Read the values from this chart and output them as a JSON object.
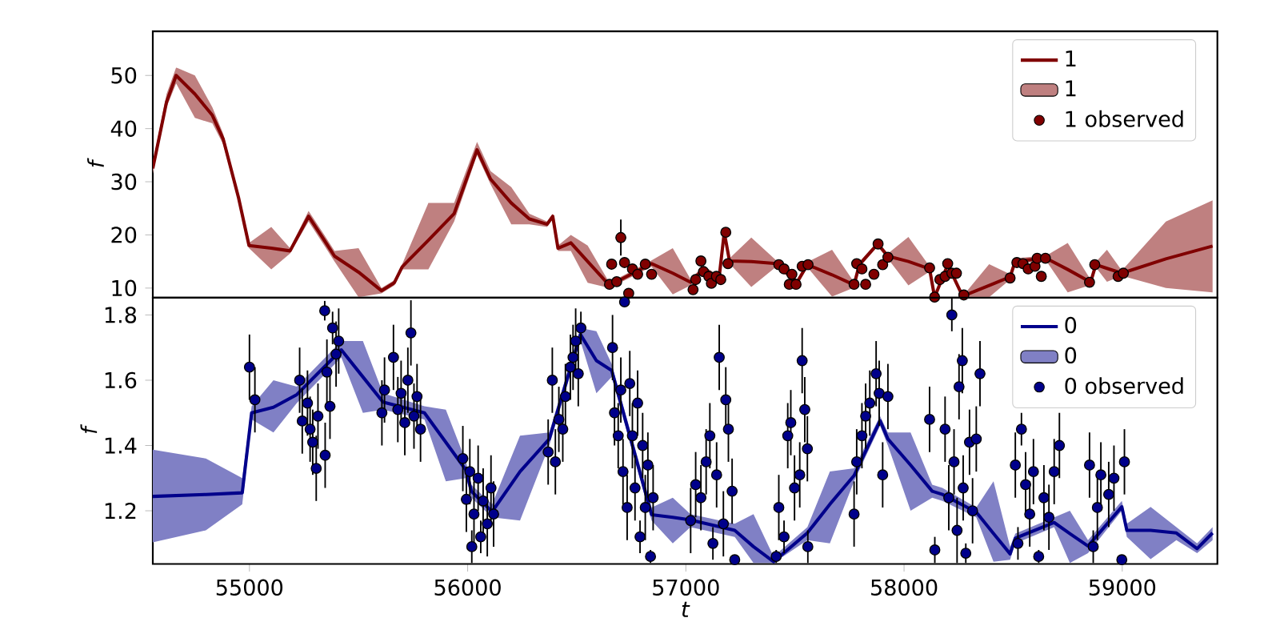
{
  "chart_data": [
    {
      "type": "line",
      "ylabel": "f",
      "xlim": [
        54557,
        59436
      ],
      "ylim": [
        8.2,
        58.3
      ],
      "yticks": [
        10,
        20,
        30,
        40,
        50
      ],
      "tick_labels": "y",
      "legend": "top right",
      "series": [
        {
          "name": "1",
          "type": "line",
          "color": "#800000",
          "x": [
            54557,
            54620,
            54664,
            54750,
            54830,
            54880,
            54950,
            54998,
            55100,
            55186,
            55271,
            55343,
            55390,
            55500,
            55605,
            55664,
            55700,
            55820,
            55938,
            56043,
            56105,
            56200,
            56283,
            56364,
            56390,
            56414,
            56473,
            56550,
            56650,
            56843,
            56940,
            57021,
            57081,
            57152,
            57176,
            57200,
            57300,
            57414,
            57510,
            57557,
            57670,
            57771,
            57795,
            57879,
            57926,
            58020,
            58117,
            58140,
            58200,
            58260,
            58283,
            58390,
            58486,
            58510,
            58652,
            58750,
            58855,
            58879,
            58930,
            58998,
            59200,
            59414
          ],
          "values": [
            32.5,
            45,
            50,
            46.5,
            42.5,
            38,
            27,
            18,
            17.5,
            17,
            23.5,
            19,
            16,
            13,
            9.5,
            11,
            14,
            19,
            24,
            36,
            30.5,
            26,
            23,
            22,
            23.5,
            17.5,
            18.5,
            15,
            10.5,
            14.6,
            12.8,
            11.1,
            13.6,
            11.8,
            20.5,
            15.1,
            15,
            14.6,
            11.1,
            14.4,
            12.5,
            10.6,
            14.4,
            18.3,
            16,
            15,
            13.6,
            8.3,
            14.4,
            9.2,
            8.7,
            10.5,
            12.1,
            15.1,
            15.6,
            13.5,
            11.1,
            14.4,
            13.7,
            12.8,
            15.5,
            17.9
          ],
          "lower": [
            31.5,
            44,
            48.5,
            42,
            41,
            37,
            26.5,
            17.5,
            13.5,
            16.5,
            22.5,
            18,
            15,
            8.3,
            9,
            10.5,
            13.5,
            13.5,
            22.5,
            35,
            29.5,
            22,
            22,
            21.5,
            23,
            17,
            17,
            11,
            10,
            14,
            8.8,
            10.5,
            13,
            11.3,
            20,
            14.6,
            10.2,
            14,
            10.6,
            13.9,
            8.4,
            10.1,
            13.9,
            17.8,
            15.5,
            10.5,
            13.1,
            8.25,
            13.9,
            8.7,
            8.3,
            8.3,
            11.6,
            14.6,
            15.1,
            9.2,
            10.6,
            13.9,
            11.2,
            12.3,
            10,
            9.2
          ],
          "upper": [
            33.5,
            46.5,
            51.5,
            50,
            44,
            39,
            27.5,
            18.5,
            21.5,
            17.5,
            24.5,
            20,
            17,
            17.5,
            10,
            11.5,
            14.5,
            26,
            26,
            37.5,
            32,
            29,
            24,
            22.5,
            24,
            18,
            20,
            18,
            11,
            15.2,
            17.5,
            11.7,
            14.2,
            12.3,
            21,
            15.6,
            19.5,
            15.2,
            11.6,
            14.9,
            17.2,
            11.1,
            14.9,
            18.8,
            16.5,
            19.6,
            14.1,
            8.8,
            14.9,
            9.7,
            9.2,
            14.5,
            12.6,
            15.6,
            16.1,
            18.5,
            11.6,
            14.9,
            17.2,
            13.3,
            22.5,
            26.5
          ]
        },
        {
          "name": "1 observed",
          "type": "scatter",
          "color": "#800000",
          "x": [
            56650,
            56660,
            56683,
            56702,
            56719,
            56738,
            56755,
            56779,
            56814,
            56829,
            56843,
            57033,
            57045,
            57069,
            57081,
            57105,
            57117,
            57140,
            57160,
            57183,
            57193,
            57426,
            57450,
            57474,
            57486,
            57505,
            57533,
            57560,
            57771,
            57783,
            57807,
            57824,
            57843,
            57862,
            57881,
            57902,
            57926,
            58117,
            58140,
            58164,
            58188,
            58200,
            58219,
            58240,
            58257,
            58274,
            58486,
            58517,
            58545,
            58569,
            58600,
            58610,
            58629,
            58648,
            58850,
            58874,
            58981,
            59005
          ],
          "values": [
            10.7,
            14.5,
            11.2,
            19.5,
            14.8,
            9.0,
            13.6,
            12.6,
            14.5,
            null,
            12.6,
            9.7,
            11.6,
            15.1,
            13.1,
            12.2,
            10.9,
            12.2,
            11.6,
            20.5,
            14.6,
            14.4,
            13.6,
            10.7,
            12.6,
            10.7,
            14.1,
            14.4,
            10.7,
            14.6,
            13.6,
            10.7,
            null,
            12.6,
            18.3,
            14.4,
            15.8,
            13.8,
            8.3,
            11.6,
            12.2,
            14.6,
            12.8,
            12.8,
            null,
            8.7,
            11.9,
            14.8,
            14.6,
            13.6,
            14.1,
            15.6,
            12.2,
            15.6,
            11.1,
            14.4,
            12.2,
            12.8
          ],
          "errors": [
            0.4,
            0.4,
            0.4,
            3.4,
            0.4,
            0.4,
            0.4,
            0.4,
            0.4,
            null,
            0.4,
            0.4,
            0.4,
            0.4,
            0.4,
            0.4,
            0.4,
            0.4,
            0.4,
            0.4,
            0.4,
            0.4,
            0.4,
            0.4,
            0.4,
            0.4,
            0.4,
            0.4,
            0.4,
            0.4,
            0.4,
            0.4,
            null,
            0.4,
            0.4,
            0.4,
            0.4,
            0.4,
            null,
            0.4,
            0.4,
            0.4,
            0.4,
            0.4,
            null,
            0.3,
            0.4,
            0.4,
            0.4,
            0.4,
            0.4,
            0.4,
            0.4,
            0.4,
            0.4,
            0.4,
            0.4,
            0.4
          ]
        }
      ]
    },
    {
      "type": "line",
      "xlabel": "t",
      "ylabel": "f",
      "xlim": [
        54557,
        59436
      ],
      "ylim": [
        1.037,
        1.853
      ],
      "xticks": [
        55000,
        56000,
        57000,
        58000,
        59000
      ],
      "yticks": [
        1.2,
        1.4,
        1.6,
        1.8
      ],
      "legend": "top right",
      "series": [
        {
          "name": "0",
          "type": "line",
          "color": "#00008b",
          "x": [
            54557,
            54800,
            54967,
            55010,
            55110,
            55217,
            55421,
            55520,
            55612,
            55802,
            55900,
            55993,
            56017,
            56112,
            56240,
            56374,
            56517,
            56590,
            56660,
            56843,
            56940,
            57021,
            57224,
            57310,
            57402,
            57557,
            57660,
            57771,
            57890,
            57926,
            58030,
            58129,
            58176,
            58331,
            58410,
            58486,
            58510,
            58688,
            58760,
            58843,
            58998,
            59021,
            59130,
            59248,
            59343,
            59414
          ],
          "values": [
            1.244,
            1.25,
            1.255,
            1.5,
            1.517,
            1.556,
            1.693,
            1.61,
            1.533,
            1.5,
            1.41,
            1.324,
            1.26,
            1.197,
            1.32,
            1.42,
            1.74,
            1.66,
            1.63,
            1.188,
            1.18,
            1.172,
            1.14,
            1.09,
            1.044,
            1.132,
            1.22,
            1.308,
            1.476,
            1.42,
            1.34,
            1.26,
            1.25,
            1.196,
            1.13,
            1.068,
            1.116,
            1.164,
            1.13,
            1.092,
            1.212,
            1.14,
            1.14,
            1.132,
            1.084,
            1.132
          ],
          "lower": [
            1.103,
            1.14,
            1.22,
            1.48,
            1.44,
            1.53,
            1.67,
            1.5,
            1.51,
            1.48,
            1.29,
            1.3,
            1.24,
            1.18,
            1.17,
            1.4,
            1.72,
            1.56,
            1.61,
            1.17,
            1.1,
            1.15,
            1.12,
            1.04,
            1.04,
            1.11,
            1.1,
            1.29,
            1.46,
            1.4,
            1.2,
            1.24,
            1.23,
            1.18,
            1.044,
            1.05,
            1.1,
            1.15,
            1.04,
            1.07,
            1.2,
            1.12,
            1.052,
            1.11,
            1.07,
            1.11
          ],
          "upper": [
            1.387,
            1.36,
            1.3,
            1.52,
            1.6,
            1.58,
            1.72,
            1.72,
            1.56,
            1.52,
            1.51,
            1.35,
            1.28,
            1.22,
            1.43,
            1.44,
            1.76,
            1.75,
            1.65,
            1.21,
            1.24,
            1.19,
            1.16,
            1.19,
            1.06,
            1.15,
            1.32,
            1.33,
            1.49,
            1.44,
            1.44,
            1.28,
            1.27,
            1.21,
            1.29,
            1.09,
            1.13,
            1.18,
            1.2,
            1.11,
            1.23,
            1.16,
            1.212,
            1.15,
            1.1,
            1.15
          ]
        },
        {
          "name": "0 observed",
          "type": "scatter",
          "color": "#00008b",
          "x": [
            55000,
            55025,
            55230,
            55242,
            55266,
            55278,
            55290,
            55306,
            55314,
            55345,
            55347,
            55355,
            55369,
            55381,
            55397,
            55409,
            55607,
            55619,
            55660,
            55680,
            55695,
            55712,
            55726,
            55740,
            55754,
            55768,
            55784,
            55978,
            55994,
            56010,
            56019,
            56029,
            56048,
            56060,
            56071,
            56090,
            56107,
            56119,
            56369,
            56388,
            56402,
            56418,
            56436,
            56448,
            56471,
            56483,
            56495,
            56507,
            56519,
            56664,
            56673,
            56690,
            56702,
            56712,
            56719,
            56731,
            56743,
            56755,
            56767,
            56779,
            56790,
            56802,
            56814,
            56826,
            56838,
            56850,
            57022,
            57045,
            57069,
            57093,
            57110,
            57124,
            57141,
            57153,
            57172,
            57183,
            57195,
            57212,
            57224,
            57414,
            57426,
            57450,
            57467,
            57481,
            57498,
            57522,
            57533,
            57545,
            57557,
            57559,
            57771,
            57783,
            57807,
            57824,
            57843,
            57872,
            57886,
            57902,
            57926,
            58117,
            58141,
            58188,
            58205,
            58219,
            58229,
            58243,
            58252,
            58267,
            58271,
            58283,
            58300,
            58314,
            58331,
            58348,
            58510,
            58522,
            58538,
            58557,
            58576,
            58593,
            58617,
            58641,
            58664,
            58688,
            58712,
            58850,
            58867,
            58886,
            58902,
            58938,
            58962,
            58998,
            59010
          ],
          "values": [
            1.64,
            1.54,
            1.6,
            1.475,
            1.53,
            1.45,
            1.41,
            1.33,
            1.49,
            1.813,
            1.37,
            1.625,
            1.52,
            1.76,
            1.68,
            1.72,
            1.5,
            1.57,
            1.67,
            1.51,
            1.56,
            1.47,
            1.6,
            1.745,
            1.49,
            1.55,
            1.45,
            1.36,
            1.235,
            1.32,
            1.09,
            1.19,
            1.3,
            1.12,
            1.23,
            1.16,
            1.27,
            1.19,
            1.38,
            1.6,
            1.35,
            1.48,
            1.45,
            1.55,
            1.64,
            1.67,
            1.72,
            1.62,
            1.76,
            1.7,
            1.5,
            1.43,
            1.57,
            1.32,
            1.84,
            1.21,
            1.59,
            1.43,
            1.27,
            1.53,
            1.12,
            1.4,
            1.21,
            1.34,
            1.06,
            1.24,
            1.17,
            1.28,
            1.24,
            1.35,
            1.43,
            1.1,
            1.31,
            1.67,
            1.16,
            1.54,
            1.45,
            1.26,
            1.05,
            1.06,
            1.21,
            1.12,
            1.43,
            1.47,
            1.27,
            1.31,
            1.66,
            1.51,
            1.39,
            1.09,
            1.19,
            1.35,
            1.43,
            1.49,
            1.53,
            1.62,
            1.56,
            1.31,
            1.55,
            1.48,
            1.08,
            1.45,
            1.24,
            1.8,
            1.35,
            1.14,
            1.58,
            1.66,
            1.27,
            1.07,
            1.41,
            1.2,
            1.42,
            1.62,
            1.34,
            1.1,
            1.45,
            1.28,
            1.19,
            1.32,
            1.06,
            1.24,
            1.18,
            1.32,
            1.4,
            1.34,
            1.09,
            1.21,
            1.31,
            1.25,
            1.3,
            1.05,
            1.35
          ],
          "errors": [
            0.1,
            0.1,
            0.1,
            0.1,
            0.1,
            0.1,
            0.1,
            0.1,
            0.1,
            0.03,
            0.1,
            0.1,
            0.1,
            0.05,
            0.1,
            0.1,
            0.1,
            0.1,
            0.1,
            0.1,
            0.1,
            0.1,
            0.1,
            0.1,
            0.1,
            0.1,
            0.1,
            0.1,
            0.1,
            0.1,
            0.05,
            0.1,
            0.1,
            0.05,
            0.1,
            0.1,
            0.1,
            0.1,
            0.1,
            0.1,
            0.1,
            0.1,
            0.1,
            0.1,
            0.1,
            0.1,
            0.1,
            0.1,
            0.05,
            0.1,
            0.1,
            0.1,
            0.1,
            0.1,
            0.01,
            0.1,
            0.1,
            0.1,
            0.1,
            0.1,
            0.05,
            0.1,
            0.1,
            0.1,
            0.02,
            0.1,
            0.1,
            0.1,
            0.1,
            0.1,
            0.1,
            0.05,
            0.1,
            0.1,
            0.1,
            0.1,
            0.1,
            0.1,
            0.01,
            0.02,
            0.1,
            0.05,
            0.1,
            0.1,
            0.1,
            0.1,
            0.1,
            0.1,
            0.1,
            0.05,
            0.1,
            0.1,
            0.1,
            0.1,
            0.1,
            0.1,
            0.1,
            0.1,
            0.1,
            0.1,
            0.04,
            0.1,
            0.1,
            0.05,
            0.1,
            0.1,
            0.1,
            0.1,
            0.1,
            0.03,
            0.1,
            0.1,
            0.1,
            0.1,
            0.1,
            0.05,
            0.05,
            0.1,
            0.1,
            0.1,
            0.02,
            0.1,
            0.1,
            0.1,
            0.1,
            0.1,
            0.05,
            0.1,
            0.1,
            0.1,
            0.1,
            0.01,
            0.1
          ]
        }
      ]
    }
  ]
}
